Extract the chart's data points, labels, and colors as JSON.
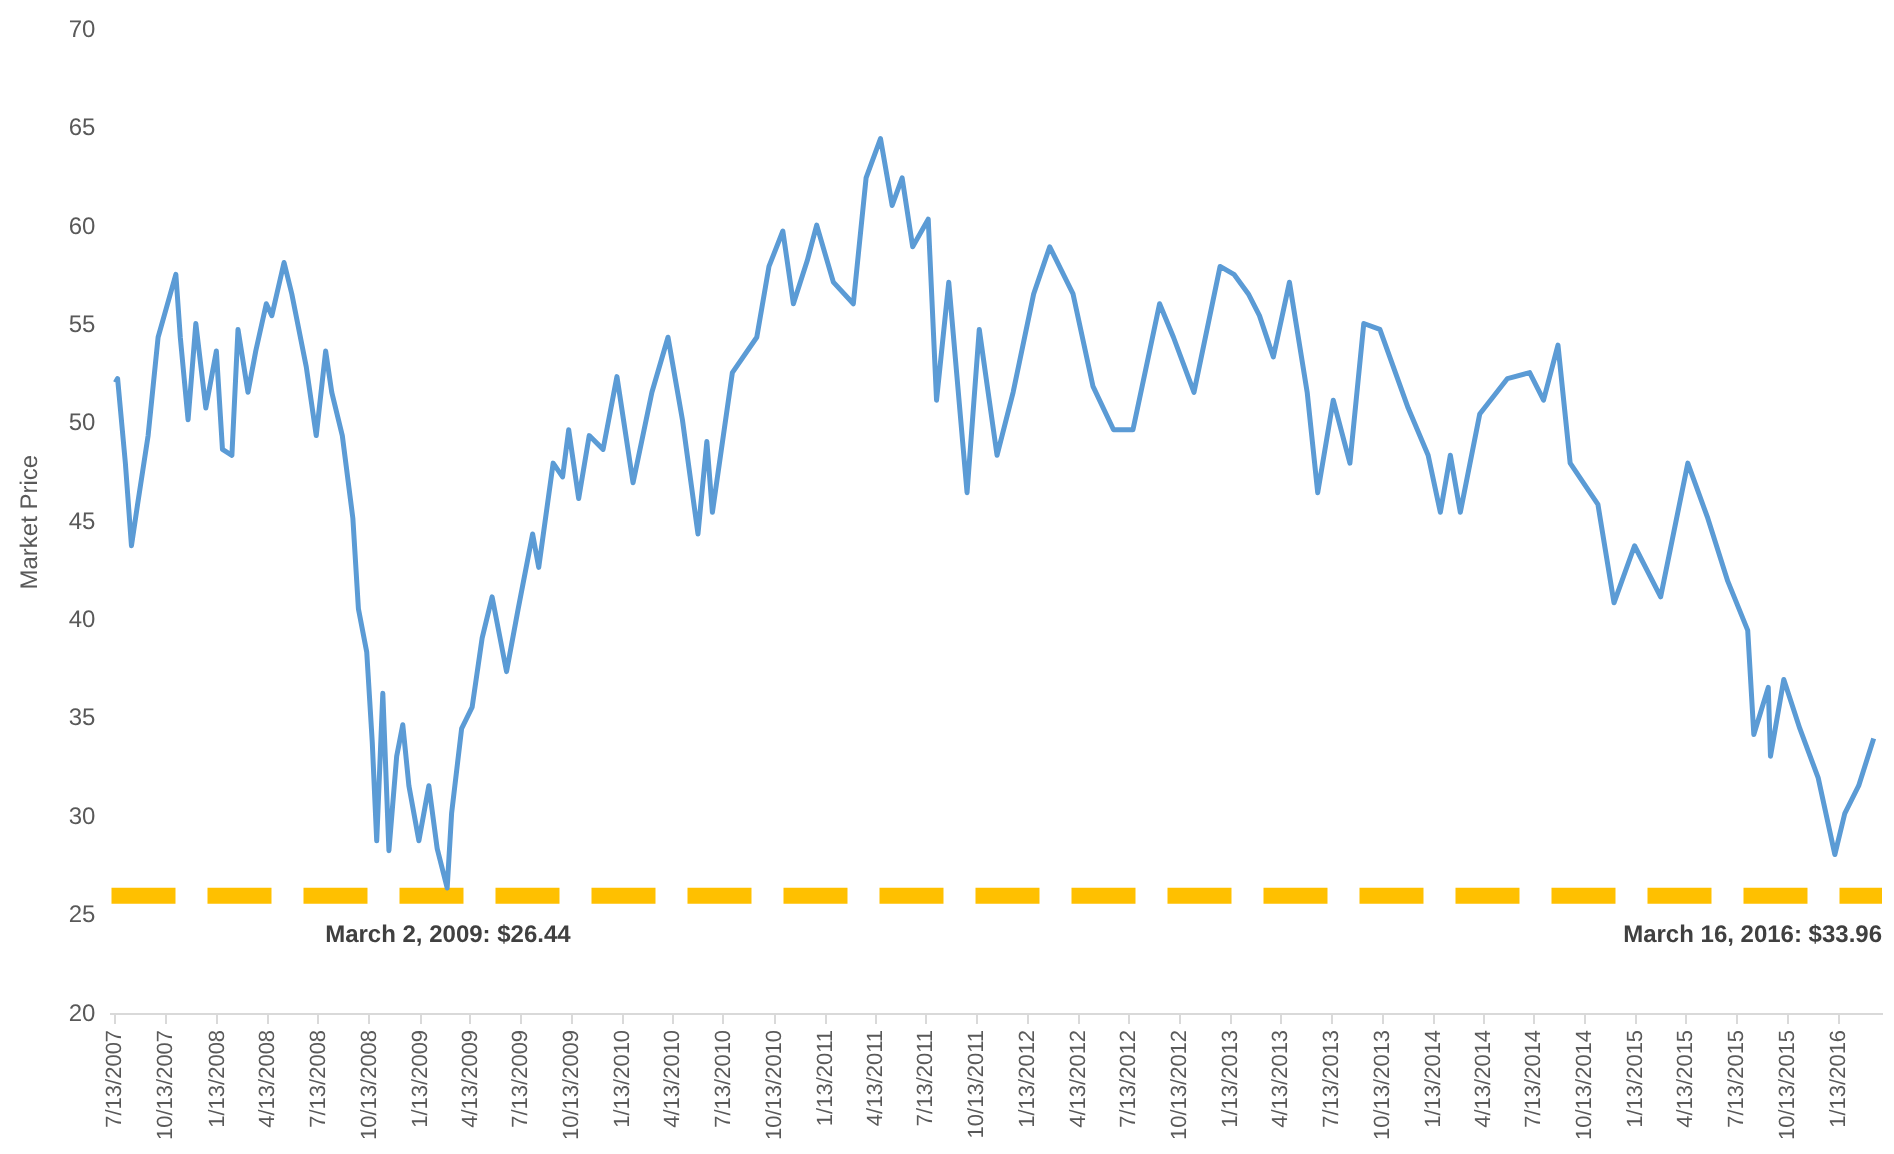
{
  "chart_data": {
    "type": "line",
    "ylabel": "Market Price",
    "marker": "none",
    "line_style": "solid",
    "grid": false,
    "legend": false,
    "xlim": [
      "2007-07-06",
      "2016-03-31"
    ],
    "ylim": [
      20,
      70
    ],
    "yticks": [
      20,
      25,
      30,
      35,
      40,
      45,
      50,
      55,
      60,
      65,
      70
    ],
    "xticks": [
      {
        "value": "2007-07-13",
        "label": "7/13/2007"
      },
      {
        "value": "2007-10-13",
        "label": "10/13/2007"
      },
      {
        "value": "2008-01-13",
        "label": "1/13/2008"
      },
      {
        "value": "2008-04-13",
        "label": "4/13/2008"
      },
      {
        "value": "2008-07-13",
        "label": "7/13/2008"
      },
      {
        "value": "2008-10-13",
        "label": "10/13/2008"
      },
      {
        "value": "2009-01-13",
        "label": "1/13/2009"
      },
      {
        "value": "2009-04-13",
        "label": "4/13/2009"
      },
      {
        "value": "2009-07-13",
        "label": "7/13/2009"
      },
      {
        "value": "2009-10-13",
        "label": "10/13/2009"
      },
      {
        "value": "2010-01-13",
        "label": "1/13/2010"
      },
      {
        "value": "2010-04-13",
        "label": "4/13/2010"
      },
      {
        "value": "2010-07-13",
        "label": "7/13/2010"
      },
      {
        "value": "2010-10-13",
        "label": "10/13/2010"
      },
      {
        "value": "2011-01-13",
        "label": "1/13/2011"
      },
      {
        "value": "2011-04-13",
        "label": "4/13/2011"
      },
      {
        "value": "2011-07-13",
        "label": "7/13/2011"
      },
      {
        "value": "2011-10-13",
        "label": "10/13/2011"
      },
      {
        "value": "2012-01-13",
        "label": "1/13/2012"
      },
      {
        "value": "2012-04-13",
        "label": "4/13/2012"
      },
      {
        "value": "2012-07-13",
        "label": "7/13/2012"
      },
      {
        "value": "2012-10-13",
        "label": "10/13/2012"
      },
      {
        "value": "2013-01-13",
        "label": "1/13/2013"
      },
      {
        "value": "2013-04-13",
        "label": "4/13/2013"
      },
      {
        "value": "2013-07-13",
        "label": "7/13/2013"
      },
      {
        "value": "2013-10-13",
        "label": "10/13/2013"
      },
      {
        "value": "2014-01-13",
        "label": "1/13/2014"
      },
      {
        "value": "2014-04-13",
        "label": "4/13/2014"
      },
      {
        "value": "2014-07-13",
        "label": "7/13/2014"
      },
      {
        "value": "2014-10-13",
        "label": "10/13/2014"
      },
      {
        "value": "2015-01-13",
        "label": "1/13/2015"
      },
      {
        "value": "2015-04-13",
        "label": "4/13/2015"
      },
      {
        "value": "2015-07-13",
        "label": "7/13/2015"
      },
      {
        "value": "2015-10-13",
        "label": "10/13/2015"
      },
      {
        "value": "2016-01-13",
        "label": "1/13/2016"
      }
    ],
    "ref_lines": [
      {
        "axis": "y",
        "value": 26,
        "color": "#ffc000",
        "line_style": "dashed"
      }
    ],
    "annotations": [
      "March 2, 2009: $26.44",
      "March 16, 2016: $33.96"
    ],
    "series": [
      {
        "color": "#5b9bd5",
        "x": [
          "2007-07-13",
          "2007-07-17",
          "2007-07-31",
          "2007-08-11",
          "2007-08-22",
          "2007-09-10",
          "2007-09-28",
          "2007-10-15",
          "2007-10-30",
          "2007-11-07",
          "2007-11-21",
          "2007-12-05",
          "2007-12-23",
          "2008-01-11",
          "2008-01-22",
          "2008-02-08",
          "2008-02-19",
          "2008-03-08",
          "2008-03-22",
          "2008-04-10",
          "2008-04-20",
          "2008-05-12",
          "2008-05-26",
          "2008-06-21",
          "2008-07-09",
          "2008-07-26",
          "2008-08-06",
          "2008-08-25",
          "2008-09-13",
          "2008-09-23",
          "2008-10-08",
          "2008-10-18",
          "2008-10-26",
          "2008-11-06",
          "2008-11-17",
          "2008-12-01",
          "2008-12-12",
          "2008-12-23",
          "2009-01-10",
          "2009-01-28",
          "2009-02-12",
          "2009-03-02",
          "2009-03-10",
          "2009-03-28",
          "2009-04-16",
          "2009-05-04",
          "2009-05-22",
          "2009-06-17",
          "2009-07-08",
          "2009-08-03",
          "2009-08-14",
          "2009-09-09",
          "2009-09-26",
          "2009-10-07",
          "2009-10-25",
          "2009-11-13",
          "2009-12-08",
          "2010-01-02",
          "2010-01-31",
          "2010-03-06",
          "2010-04-04",
          "2010-04-30",
          "2010-05-28",
          "2010-06-13",
          "2010-06-23",
          "2010-07-29",
          "2010-09-11",
          "2010-10-03",
          "2010-10-28",
          "2010-11-16",
          "2010-12-11",
          "2010-12-28",
          "2011-01-27",
          "2011-03-04",
          "2011-03-27",
          "2011-04-22",
          "2011-05-13",
          "2011-05-31",
          "2011-06-19",
          "2011-07-17",
          "2011-08-01",
          "2011-08-23",
          "2011-09-25",
          "2011-10-17",
          "2011-11-18",
          "2011-12-17",
          "2012-01-23",
          "2012-02-21",
          "2012-04-03",
          "2012-05-09",
          "2012-06-15",
          "2012-07-20",
          "2012-08-19",
          "2012-09-06",
          "2012-10-01",
          "2012-11-07",
          "2012-12-24",
          "2013-01-18",
          "2013-02-13",
          "2013-03-05",
          "2013-03-30",
          "2013-04-28",
          "2013-05-30",
          "2013-06-18",
          "2013-07-16",
          "2013-08-15",
          "2013-09-09",
          "2013-10-08",
          "2013-11-28",
          "2014-01-03",
          "2014-01-25",
          "2014-02-12",
          "2014-03-02",
          "2014-04-06",
          "2014-05-26",
          "2014-07-05",
          "2014-07-30",
          "2014-08-25",
          "2014-09-16",
          "2014-11-05",
          "2014-12-04",
          "2015-01-10",
          "2015-02-26",
          "2015-04-16",
          "2015-05-22",
          "2015-06-27",
          "2015-08-02",
          "2015-08-13",
          "2015-09-08",
          "2015-09-12",
          "2015-10-06",
          "2015-11-04",
          "2015-12-07",
          "2016-01-06",
          "2016-01-24",
          "2016-02-18",
          "2016-03-16"
        ],
        "values": [
          52.1,
          52.3,
          48.0,
          43.8,
          45.9,
          49.4,
          54.4,
          56.1,
          57.6,
          54.4,
          50.2,
          55.1,
          50.8,
          53.7,
          48.7,
          48.4,
          54.8,
          51.6,
          53.7,
          56.1,
          55.5,
          58.2,
          56.6,
          52.9,
          49.4,
          53.7,
          51.6,
          49.4,
          45.2,
          40.6,
          38.4,
          33.8,
          28.8,
          36.3,
          28.3,
          33.1,
          34.7,
          31.6,
          28.8,
          31.6,
          28.4,
          26.4,
          30.2,
          34.5,
          35.6,
          39.1,
          41.2,
          37.4,
          40.6,
          44.4,
          42.7,
          48.0,
          47.3,
          49.7,
          46.2,
          49.4,
          48.7,
          52.4,
          47.0,
          51.6,
          54.4,
          50.2,
          44.4,
          49.1,
          45.5,
          52.6,
          54.4,
          58.0,
          59.8,
          56.1,
          58.3,
          60.1,
          57.2,
          56.1,
          62.5,
          64.5,
          61.1,
          62.5,
          59.0,
          60.4,
          51.2,
          57.2,
          46.5,
          54.8,
          48.4,
          51.6,
          56.6,
          59.0,
          56.6,
          51.9,
          49.7,
          49.7,
          53.7,
          56.1,
          54.4,
          51.6,
          58.0,
          57.6,
          56.6,
          55.5,
          53.4,
          57.2,
          51.6,
          46.5,
          51.2,
          48.0,
          55.1,
          54.8,
          50.8,
          48.4,
          45.5,
          48.4,
          45.5,
          50.5,
          52.3,
          52.6,
          51.2,
          54.0,
          48.0,
          45.9,
          40.9,
          43.8,
          41.2,
          48.0,
          45.2,
          42.0,
          39.5,
          34.2,
          36.6,
          33.1,
          37.0,
          34.5,
          32.0,
          28.1,
          30.2,
          31.6,
          34.0
        ]
      }
    ]
  }
}
